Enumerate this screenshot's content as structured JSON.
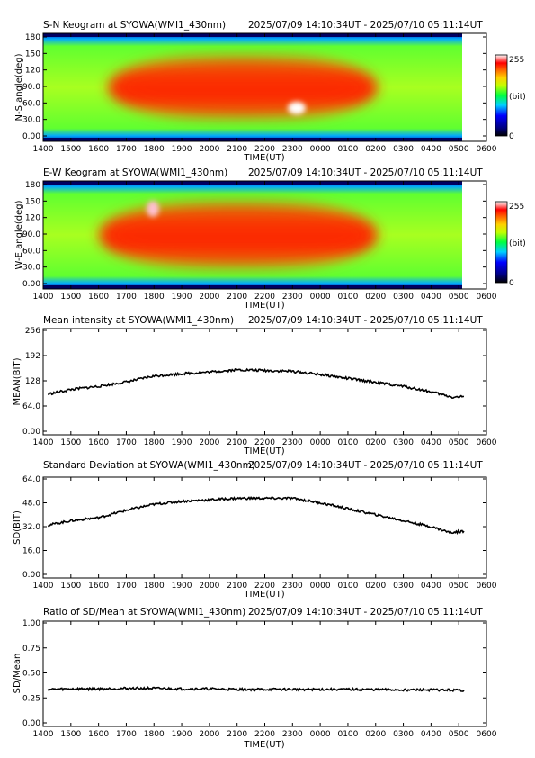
{
  "chart_data": [
    {
      "type": "heatmap",
      "title": "S-N Keogram at SYOWA(WMI1_430nm)",
      "time_range": "2025/07/09 14:10:34UT - 2025/07/10 05:11:14UT",
      "xlabel": "TIME(UT)",
      "ylabel": "N-S angle(deg)",
      "x_ticks": [
        "1400",
        "1500",
        "1600",
        "1700",
        "1800",
        "1900",
        "2000",
        "2100",
        "2200",
        "2300",
        "0000",
        "0100",
        "0200",
        "0300",
        "0400",
        "0500",
        "0600"
      ],
      "y_ticks": [
        "0.00",
        "30.0",
        "60.0",
        "90.0",
        "120",
        "150",
        "180"
      ],
      "ylim": [
        0,
        180
      ],
      "colorbar": {
        "min_label": "0",
        "max_label": "255",
        "unit": "(bit)"
      },
      "grid": false
    },
    {
      "type": "heatmap",
      "title": "E-W Keogram at SYOWA(WMI1_430nm)",
      "time_range": "2025/07/09 14:10:34UT - 2025/07/10 05:11:14UT",
      "xlabel": "TIME(UT)",
      "ylabel": "W-E angle(deg)",
      "x_ticks": [
        "1400",
        "1500",
        "1600",
        "1700",
        "1800",
        "1900",
        "2000",
        "2100",
        "2200",
        "2300",
        "0000",
        "0100",
        "0200",
        "0300",
        "0400",
        "0500",
        "0600"
      ],
      "y_ticks": [
        "0.00",
        "30.0",
        "60.0",
        "90.0",
        "120",
        "150",
        "180"
      ],
      "ylim": [
        0,
        180
      ],
      "colorbar": {
        "min_label": "0",
        "max_label": "255",
        "unit": "(bit)"
      },
      "grid": false
    },
    {
      "type": "line",
      "title": "Mean intensity at SYOWA(WMI1_430nm)",
      "time_range": "2025/07/09 14:10:34UT - 2025/07/10 05:11:14UT",
      "xlabel": "TIME(UT)",
      "ylabel": "MEAN(BIT)",
      "x_ticks": [
        "1400",
        "1500",
        "1600",
        "1700",
        "1800",
        "1900",
        "2000",
        "2100",
        "2200",
        "2300",
        "0000",
        "0100",
        "0200",
        "0300",
        "0400",
        "0500",
        "0600"
      ],
      "y_ticks": [
        "0.00",
        "64.0",
        "128",
        "192",
        "256"
      ],
      "ylim": [
        0,
        256
      ],
      "x_hours": [
        14.17,
        15,
        16,
        17,
        18,
        19,
        20,
        21,
        22,
        23,
        24,
        25,
        26,
        27,
        28,
        28.8,
        29.19
      ],
      "values": [
        94,
        106,
        114,
        125,
        140,
        146,
        150,
        156,
        154,
        152,
        144,
        134,
        124,
        114,
        100,
        86,
        88
      ],
      "grid": false
    },
    {
      "type": "line",
      "title": "Standard Deviation at SYOWA(WMI1_430nm)",
      "time_range": "2025/07/09 14:10:34UT - 2025/07/10 05:11:14UT",
      "xlabel": "TIME(UT)",
      "ylabel": "SD(BIT)",
      "x_ticks": [
        "1400",
        "1500",
        "1600",
        "1700",
        "1800",
        "1900",
        "2000",
        "2100",
        "2200",
        "2300",
        "0000",
        "0100",
        "0200",
        "0300",
        "0400",
        "0500",
        "0600"
      ],
      "y_ticks": [
        "0.00",
        "16.0",
        "32.0",
        "48.0",
        "64.0"
      ],
      "ylim": [
        0,
        64
      ],
      "x_hours": [
        14.17,
        15,
        16,
        17,
        18,
        19,
        20,
        21,
        22,
        23,
        24,
        25,
        26,
        27,
        28,
        28.7,
        29.19
      ],
      "values": [
        33,
        36,
        38,
        43,
        47,
        49,
        50,
        51,
        51,
        51,
        48,
        44,
        40,
        36,
        32,
        28,
        29
      ],
      "grid": false
    },
    {
      "type": "line",
      "title": "Ratio of SD/Mean at SYOWA(WMI1_430nm)",
      "time_range": "2025/07/09 14:10:34UT - 2025/07/10 05:11:14UT",
      "xlabel": "TIME(UT)",
      "ylabel": "SD/Mean",
      "x_ticks": [
        "1400",
        "1500",
        "1600",
        "1700",
        "1800",
        "1900",
        "2000",
        "2100",
        "2200",
        "2300",
        "0000",
        "0100",
        "0200",
        "0300",
        "0400",
        "0500",
        "0600"
      ],
      "y_ticks": [
        "0.00",
        "0.25",
        "0.50",
        "0.75",
        "1.00"
      ],
      "ylim": [
        0,
        1
      ],
      "x_hours": [
        14.17,
        15,
        16,
        17,
        18,
        19,
        20,
        21,
        22,
        23,
        24,
        25,
        26,
        27,
        28,
        29.19
      ],
      "values": [
        0.335,
        0.34,
        0.34,
        0.345,
        0.345,
        0.34,
        0.34,
        0.335,
        0.335,
        0.335,
        0.335,
        0.335,
        0.333,
        0.33,
        0.33,
        0.325
      ],
      "grid": false
    }
  ]
}
